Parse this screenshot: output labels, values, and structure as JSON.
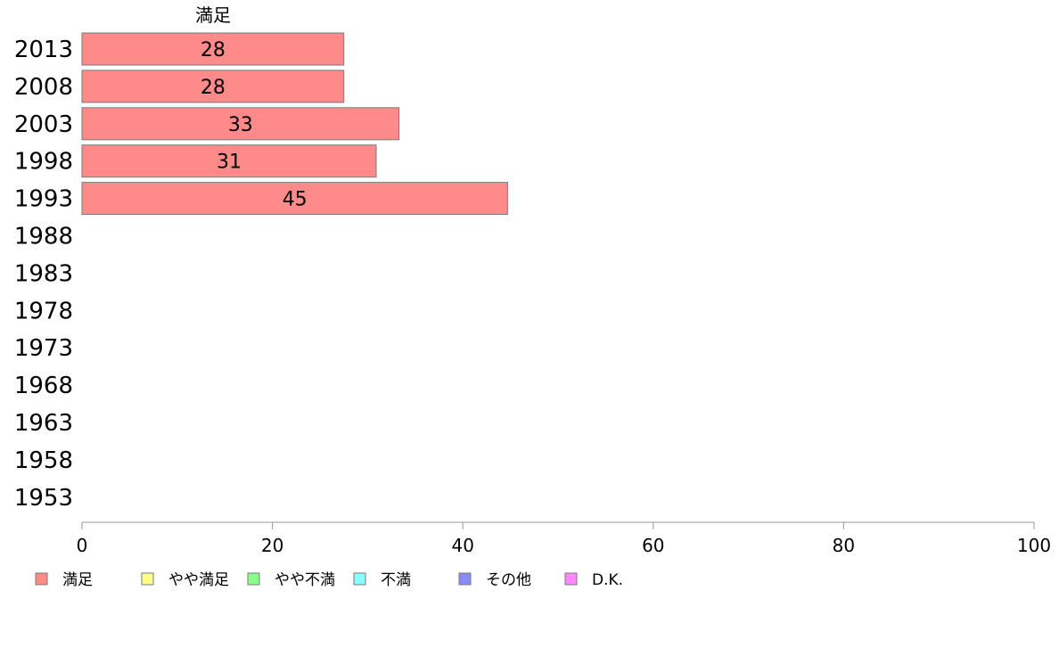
{
  "chart_data": {
    "type": "bar",
    "orientation": "horizontal",
    "stacked": true,
    "categories": [
      "2013",
      "2008",
      "2003",
      "1998",
      "1993",
      "1988",
      "1983",
      "1978",
      "1973",
      "1968",
      "1963",
      "1958",
      "1953"
    ],
    "series": [
      {
        "name": "満足",
        "color": "#ff8a8a",
        "values": [
          27.5,
          27.5,
          33.3,
          30.9,
          44.7,
          null,
          null,
          null,
          null,
          null,
          null,
          null,
          null
        ],
        "labels": [
          "28",
          "28",
          "33",
          "31",
          "45",
          "",
          "",
          "",
          "",
          "",
          "",
          "",
          ""
        ]
      },
      {
        "name": "やや満足",
        "color": "#ffff8a",
        "values": [
          null,
          null,
          null,
          null,
          null,
          null,
          null,
          null,
          null,
          null,
          null,
          null,
          null
        ]
      },
      {
        "name": "やや不満",
        "color": "#8aff8a",
        "values": [
          null,
          null,
          null,
          null,
          null,
          null,
          null,
          null,
          null,
          null,
          null,
          null,
          null
        ]
      },
      {
        "name": "不満",
        "color": "#8affff",
        "values": [
          null,
          null,
          null,
          null,
          null,
          null,
          null,
          null,
          null,
          null,
          null,
          null,
          null
        ]
      },
      {
        "name": "その他",
        "color": "#8a8aff",
        "values": [
          null,
          null,
          null,
          null,
          null,
          null,
          null,
          null,
          null,
          null,
          null,
          null,
          null
        ]
      },
      {
        "name": "D.K.",
        "color": "#ff8aff",
        "values": [
          null,
          null,
          null,
          null,
          null,
          null,
          null,
          null,
          null,
          null,
          null,
          null,
          null
        ]
      }
    ],
    "column_header": "満足",
    "xlim": [
      0,
      100
    ],
    "xticks": [
      0,
      20,
      40,
      60,
      80,
      100
    ],
    "grid": false,
    "legend_position": "bottom-left"
  }
}
